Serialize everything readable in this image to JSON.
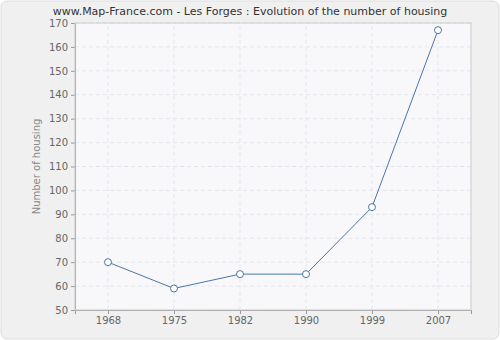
{
  "chart_data": {
    "type": "line",
    "title": "www.Map-France.com - Les Forges : Evolution of the number of housing",
    "y_label": "Number of housing",
    "categories": [
      "1968",
      "1975",
      "1982",
      "1990",
      "1999",
      "2007"
    ],
    "values": [
      70,
      59,
      65,
      65,
      93,
      167
    ],
    "color": "#4a76a8",
    "marker": "circle",
    "ylim": [
      50,
      170
    ],
    "yticks": [
      50,
      60,
      70,
      80,
      90,
      100,
      110,
      120,
      130,
      140,
      150,
      160,
      170
    ],
    "grid": true
  }
}
